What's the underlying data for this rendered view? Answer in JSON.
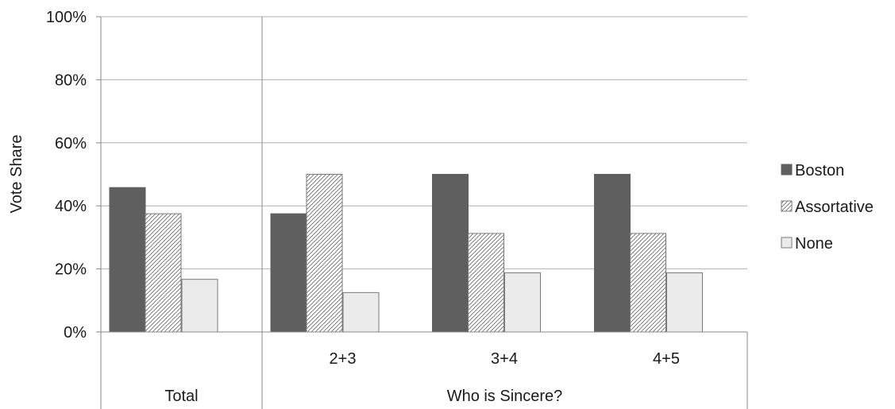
{
  "chart_data": {
    "type": "bar",
    "ylabel": "Vote Share",
    "ylim": [
      0,
      1
    ],
    "yticks": [
      "0%",
      "20%",
      "40%",
      "60%",
      "80%",
      "100%"
    ],
    "ytick_values": [
      0,
      0.2,
      0.4,
      0.6,
      0.8,
      1.0
    ],
    "grid": true,
    "legend_position": "right",
    "categories": [
      "",
      "2+3",
      "3+4",
      "4+5"
    ],
    "category_groups": [
      {
        "label": "Total",
        "categories": [
          0
        ]
      },
      {
        "label": "Who is Sincere?",
        "categories": [
          1,
          2,
          3
        ]
      }
    ],
    "series": [
      {
        "name": "Boston",
        "values": [
          0.458,
          0.375,
          0.5,
          0.5
        ],
        "color": "#5f5f5f",
        "pattern": "solid"
      },
      {
        "name": "Assortative",
        "values": [
          0.375,
          0.5,
          0.3125,
          0.3125
        ],
        "color": "#ffffff",
        "pattern": "diagonal-hatch"
      },
      {
        "name": "None",
        "values": [
          0.167,
          0.125,
          0.1875,
          0.1875
        ],
        "color": "#ebebeb",
        "pattern": "solid"
      }
    ]
  }
}
